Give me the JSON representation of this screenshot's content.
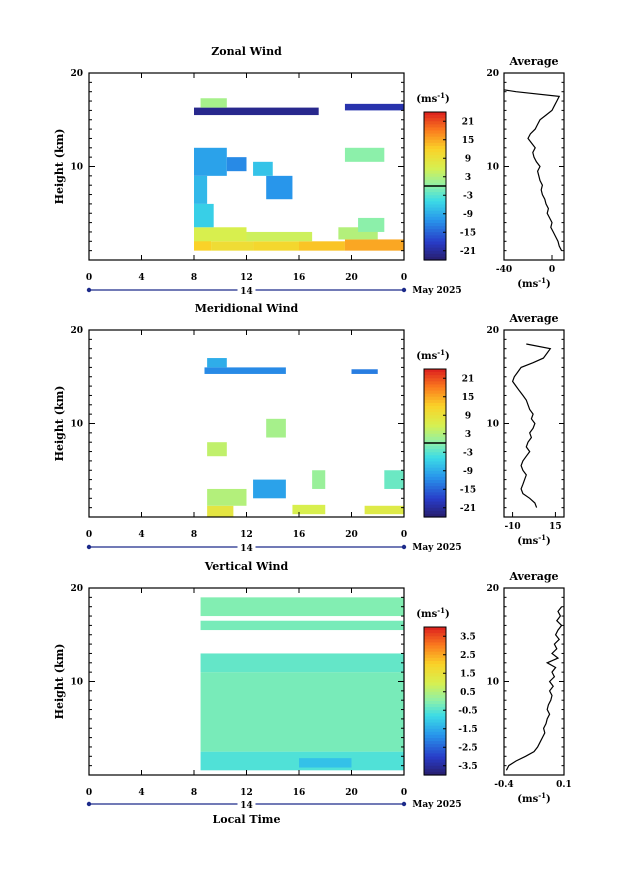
{
  "chart_data": [
    {
      "type": "heatmap",
      "title": "Zonal Wind",
      "ylabel": "Height (km)",
      "ylim": [
        0,
        20
      ],
      "xlim": [
        0,
        24
      ],
      "x_ticks": [
        "0",
        "4",
        "8",
        "12",
        "16",
        "20",
        "0"
      ],
      "y_ticks": [
        "20",
        "10"
      ],
      "date_label": "14",
      "month_label": "May 2025",
      "colorbar": {
        "unit": "(ms",
        "unit_sup": "-1",
        "unit_close": ")",
        "ticks": [
          "21",
          "15",
          "9",
          "3",
          "-3",
          "-9",
          "-15",
          "-21"
        ],
        "range": [
          -24,
          24
        ],
        "zero_line": 0
      },
      "cells": [
        {
          "t0": 8.0,
          "t1": 9.3,
          "h0": 1.0,
          "h1": 2.2,
          "v": 12
        },
        {
          "t0": 9.3,
          "t1": 12.5,
          "h0": 1.0,
          "h1": 2.0,
          "v": 10
        },
        {
          "t0": 12.5,
          "t1": 16.0,
          "h0": 1.0,
          "h1": 2.0,
          "v": 11
        },
        {
          "t0": 16.0,
          "t1": 19.5,
          "h0": 1.0,
          "h1": 2.0,
          "v": 13
        },
        {
          "t0": 19.5,
          "t1": 24.0,
          "h0": 1.0,
          "h1": 2.2,
          "v": 15
        },
        {
          "t0": 8.0,
          "t1": 12.0,
          "h0": 2.0,
          "h1": 3.5,
          "v": 6
        },
        {
          "t0": 12.0,
          "t1": 17.0,
          "h0": 2.0,
          "h1": 3.0,
          "v": 5
        },
        {
          "t0": 19.0,
          "t1": 22.0,
          "h0": 2.2,
          "h1": 3.5,
          "v": 3
        },
        {
          "t0": 8.0,
          "t1": 9.5,
          "h0": 3.5,
          "h1": 6.0,
          "v": -6
        },
        {
          "t0": 8.0,
          "t1": 9.0,
          "h0": 6.0,
          "h1": 9.0,
          "v": -8
        },
        {
          "t0": 8.0,
          "t1": 10.5,
          "h0": 9.0,
          "h1": 12.0,
          "v": -10
        },
        {
          "t0": 10.5,
          "t1": 12.0,
          "h0": 9.5,
          "h1": 11.0,
          "v": -12
        },
        {
          "t0": 13.5,
          "t1": 15.5,
          "h0": 6.5,
          "h1": 9.0,
          "v": -11
        },
        {
          "t0": 12.5,
          "t1": 14.0,
          "h0": 9.0,
          "h1": 10.5,
          "v": -7
        },
        {
          "t0": 19.5,
          "t1": 22.5,
          "h0": 10.5,
          "h1": 12.0,
          "v": 0
        },
        {
          "t0": 20.5,
          "t1": 22.5,
          "h0": 3.0,
          "h1": 4.5,
          "v": 0
        },
        {
          "t0": 8.0,
          "t1": 17.5,
          "h0": 15.5,
          "h1": 16.3,
          "v": -22
        },
        {
          "t0": 19.5,
          "t1": 24.0,
          "h0": 16.0,
          "h1": 16.7,
          "v": -20
        },
        {
          "t0": 8.5,
          "t1": 10.5,
          "h0": 16.3,
          "h1": 17.3,
          "v": 2
        }
      ],
      "profile": {
        "title": "Average",
        "xlim": [
          -40,
          10
        ],
        "x_ticks": [
          "-40",
          "0"
        ],
        "y_ticks": [
          "20",
          "10"
        ],
        "ylim": [
          0,
          20
        ],
        "unit": "(ms",
        "unit_sup": "-1",
        "unit_close": ")",
        "x": [
          8,
          6,
          5,
          3,
          1,
          -1,
          0,
          -2,
          -4,
          -3,
          -5,
          -6,
          -8,
          -9,
          -8,
          -10,
          -11,
          -12,
          -10,
          -13,
          -15,
          -16,
          -14,
          -17,
          -20,
          -18,
          -14,
          -12,
          -10,
          -5,
          0,
          2,
          4,
          6,
          -30,
          -40
        ],
        "h": [
          1.0,
          1.5,
          2.0,
          2.5,
          3.0,
          3.5,
          4.0,
          4.5,
          5.0,
          5.5,
          6.0,
          6.5,
          7.0,
          7.5,
          8.0,
          8.5,
          9.0,
          9.5,
          10.0,
          10.5,
          11.0,
          11.5,
          12.0,
          12.5,
          13.0,
          13.5,
          14.0,
          14.5,
          15.0,
          15.5,
          16.0,
          16.5,
          17.0,
          17.5,
          18.0,
          18.2
        ]
      }
    },
    {
      "type": "heatmap",
      "title": "Meridional Wind",
      "ylabel": "Height (km)",
      "ylim": [
        0,
        20
      ],
      "xlim": [
        0,
        24
      ],
      "x_ticks": [
        "0",
        "4",
        "8",
        "12",
        "16",
        "20",
        "0"
      ],
      "y_ticks": [
        "20",
        "10"
      ],
      "date_label": "14",
      "month_label": "May 2025",
      "colorbar": {
        "unit": "(ms",
        "unit_sup": "-1",
        "unit_close": ")",
        "ticks": [
          "21",
          "15",
          "9",
          "3",
          "-3",
          "-9",
          "-15",
          "-21"
        ],
        "range": [
          -24,
          24
        ],
        "zero_line": 0
      },
      "cells": [
        {
          "t0": 9.0,
          "t1": 11.0,
          "h0": 0.0,
          "h1": 1.2,
          "v": 8
        },
        {
          "t0": 15.5,
          "t1": 18.0,
          "h0": 0.3,
          "h1": 1.3,
          "v": 6
        },
        {
          "t0": 21.0,
          "t1": 24.0,
          "h0": 0.3,
          "h1": 1.2,
          "v": 7
        },
        {
          "t0": 9.0,
          "t1": 12.0,
          "h0": 1.2,
          "h1": 3.0,
          "v": 3
        },
        {
          "t0": 12.5,
          "t1": 15.0,
          "h0": 2.0,
          "h1": 4.0,
          "v": -10
        },
        {
          "t0": 9.0,
          "t1": 10.5,
          "h0": 6.5,
          "h1": 8.0,
          "v": 4
        },
        {
          "t0": 17.0,
          "t1": 18.0,
          "h0": 3.0,
          "h1": 5.0,
          "v": 1
        },
        {
          "t0": 22.5,
          "t1": 24.0,
          "h0": 3.0,
          "h1": 5.0,
          "v": -2
        },
        {
          "t0": 13.5,
          "t1": 15.0,
          "h0": 8.5,
          "h1": 10.5,
          "v": 2
        },
        {
          "t0": 8.8,
          "t1": 15.0,
          "h0": 15.3,
          "h1": 16.0,
          "v": -12
        },
        {
          "t0": 9.0,
          "t1": 10.5,
          "h0": 16.0,
          "h1": 17.0,
          "v": -9
        },
        {
          "t0": 20.0,
          "t1": 22.0,
          "h0": 15.3,
          "h1": 15.8,
          "v": -13
        }
      ],
      "profile": {
        "title": "Average",
        "xlim": [
          -15,
          20
        ],
        "x_ticks": [
          "-10",
          "15"
        ],
        "y_ticks": [
          "20",
          "10"
        ],
        "ylim": [
          0,
          20
        ],
        "unit": "(ms",
        "unit_sup": "-1",
        "unit_close": ")",
        "x": [
          4,
          3,
          0,
          -4,
          -5,
          -4,
          -3,
          -2,
          -4,
          -5,
          -4,
          -2,
          0,
          -2,
          -1,
          1,
          0,
          2,
          3,
          1,
          2,
          0,
          -1,
          -2,
          -4,
          -6,
          -8,
          -10,
          -9,
          -7,
          -5,
          2,
          8,
          10,
          12,
          -2
        ],
        "h": [
          1.0,
          1.5,
          2.0,
          2.5,
          3.0,
          3.5,
          4.0,
          4.5,
          5.0,
          5.5,
          6.0,
          6.5,
          7.0,
          7.5,
          8.0,
          8.5,
          9.0,
          9.5,
          10.0,
          10.5,
          11.0,
          11.5,
          12.0,
          12.5,
          13.0,
          13.5,
          14.0,
          14.5,
          15.0,
          15.5,
          16.0,
          16.5,
          17.0,
          17.5,
          18.0,
          18.5
        ]
      }
    },
    {
      "type": "heatmap",
      "title": "Vertical Wind",
      "ylabel": "Height (km)",
      "xlabel": "Local Time",
      "ylim": [
        0,
        20
      ],
      "xlim": [
        0,
        24
      ],
      "x_ticks": [
        "0",
        "4",
        "8",
        "12",
        "16",
        "20",
        "0"
      ],
      "y_ticks": [
        "20",
        "10"
      ],
      "date_label": "14",
      "month_label": "May 2025",
      "colorbar": {
        "unit": "(ms",
        "unit_sup": "-1",
        "unit_close": ")",
        "ticks": [
          "3.5",
          "2.5",
          "1.5",
          "0.5",
          "-0.5",
          "-1.5",
          "-2.5",
          "-3.5"
        ],
        "range": [
          -4,
          4
        ]
      },
      "cells": [
        {
          "t0": 8.5,
          "t1": 24.0,
          "h0": 0.5,
          "h1": 2.5,
          "v": -0.6
        },
        {
          "t0": 16.0,
          "t1": 20.0,
          "h0": 0.8,
          "h1": 1.8,
          "v": -1.2
        },
        {
          "t0": 8.5,
          "t1": 24.0,
          "h0": 2.5,
          "h1": 11.0,
          "v": -0.2
        },
        {
          "t0": 8.5,
          "t1": 24.0,
          "h0": 11.0,
          "h1": 13.0,
          "v": -0.4
        },
        {
          "t0": 8.5,
          "t1": 24.0,
          "h0": 15.5,
          "h1": 16.5,
          "v": -0.2
        },
        {
          "t0": 8.5,
          "t1": 24.0,
          "h0": 17.0,
          "h1": 19.0,
          "v": -0.1
        }
      ],
      "profile": {
        "title": "Average",
        "xlim": [
          -0.4,
          0.1
        ],
        "x_ticks": [
          "-0.4",
          "0.1"
        ],
        "y_ticks": [
          "20",
          "10"
        ],
        "ylim": [
          0,
          20
        ],
        "unit": "(ms",
        "unit_sup": "-1",
        "unit_close": ")",
        "x": [
          -0.38,
          -0.36,
          -0.3,
          -0.22,
          -0.15,
          -0.12,
          -0.1,
          -0.08,
          -0.06,
          -0.07,
          -0.05,
          -0.04,
          -0.02,
          -0.04,
          -0.03,
          -0.01,
          0.0,
          -0.02,
          0.01,
          -0.02,
          0.02,
          0.0,
          0.03,
          -0.04,
          0.05,
          0.0,
          0.04,
          0.02,
          0.06,
          0.03,
          0.05,
          0.08,
          0.04,
          0.07,
          0.05,
          0.08
        ],
        "h": [
          0.5,
          1.0,
          1.5,
          2.0,
          2.5,
          3.0,
          3.5,
          4.0,
          4.5,
          5.0,
          5.5,
          6.0,
          6.5,
          7.0,
          7.5,
          8.0,
          8.5,
          9.0,
          9.5,
          10.0,
          10.5,
          11.0,
          11.5,
          12.0,
          12.5,
          13.0,
          13.5,
          14.0,
          14.5,
          15.0,
          15.5,
          16.0,
          16.5,
          17.0,
          17.5,
          18.0
        ]
      }
    }
  ]
}
